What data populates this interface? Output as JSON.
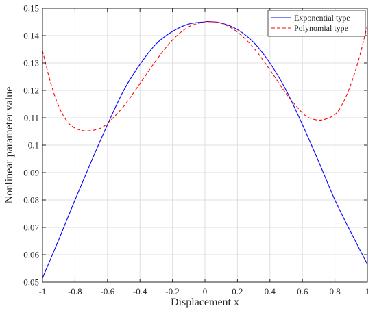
{
  "chart_data": {
    "type": "line",
    "title": "",
    "xlabel": "Displacement x",
    "ylabel": "Nonlinear parameter value",
    "xlim": [
      -1,
      1
    ],
    "ylim": [
      0.05,
      0.15
    ],
    "xticks": [
      -1,
      -0.8,
      -0.6,
      -0.4,
      -0.2,
      0,
      0.2,
      0.4,
      0.6,
      0.8,
      1
    ],
    "xtick_labels": [
      "-1",
      "-0.8",
      "-0.6",
      "-0.4",
      "-0.2",
      "0",
      "0.2",
      "0.4",
      "0.6",
      "0.8",
      "1"
    ],
    "yticks": [
      0.05,
      0.06,
      0.07,
      0.08,
      0.09,
      0.1,
      0.11,
      0.12,
      0.13,
      0.14,
      0.15
    ],
    "ytick_labels": [
      "0.05",
      "0.06",
      "0.07",
      "0.08",
      "0.09",
      "0.1",
      "0.11",
      "0.12",
      "0.13",
      "0.14",
      "0.15"
    ],
    "grid": true,
    "legend_position": "top-right",
    "series": [
      {
        "name": "Exponential type",
        "color": "#0000ff",
        "style": "solid",
        "x": [
          -1,
          -0.9,
          -0.8,
          -0.7,
          -0.6,
          -0.5,
          -0.4,
          -0.3,
          -0.2,
          -0.1,
          0,
          0.02,
          0.1,
          0.2,
          0.3,
          0.4,
          0.5,
          0.6,
          0.7,
          0.8,
          0.9,
          1
        ],
        "y": [
          0.0515,
          0.0655,
          0.08,
          0.094,
          0.1075,
          0.12,
          0.1295,
          0.137,
          0.1415,
          0.1442,
          0.145,
          0.1451,
          0.1446,
          0.1422,
          0.1375,
          0.13,
          0.12,
          0.1075,
          0.094,
          0.08,
          0.068,
          0.0565
        ]
      },
      {
        "name": "Polynomial type",
        "color": "#ff0000",
        "style": "dashed",
        "x": [
          -1,
          -0.95,
          -0.9,
          -0.85,
          -0.8,
          -0.75,
          -0.72,
          -0.65,
          -0.6,
          -0.5,
          -0.4,
          -0.3,
          -0.2,
          -0.1,
          0,
          0.02,
          0.1,
          0.2,
          0.3,
          0.4,
          0.5,
          0.6,
          0.65,
          0.72,
          0.8,
          0.85,
          0.9,
          0.95,
          1
        ],
        "y": [
          0.1345,
          0.1228,
          0.1142,
          0.1088,
          0.1062,
          0.1053,
          0.1052,
          0.106,
          0.108,
          0.1142,
          0.1225,
          0.131,
          0.1384,
          0.1432,
          0.145,
          0.1451,
          0.1445,
          0.1413,
          0.1355,
          0.1275,
          0.1188,
          0.1118,
          0.1098,
          0.1092,
          0.1112,
          0.1155,
          0.1225,
          0.132,
          0.1438
        ]
      }
    ]
  }
}
